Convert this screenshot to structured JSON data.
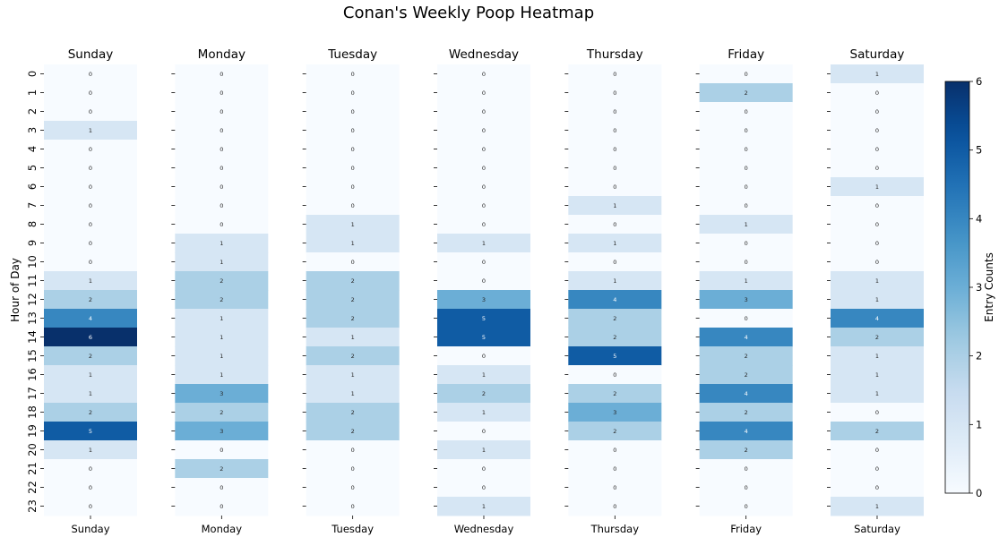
{
  "chart_data": {
    "type": "heatmap",
    "title": "Conan's Weekly Poop Heatmap",
    "ylabel": "Hour of Day",
    "colorbar_label": "Entry Counts",
    "colorbar_range": [
      0,
      6
    ],
    "colorbar_ticks": [
      "0",
      "1",
      "2",
      "3",
      "4",
      "5",
      "6"
    ],
    "colormap": "Blues",
    "hours": [
      "0",
      "1",
      "2",
      "3",
      "4",
      "5",
      "6",
      "7",
      "8",
      "9",
      "10",
      "11",
      "12",
      "13",
      "14",
      "15",
      "16",
      "17",
      "18",
      "19",
      "20",
      "21",
      "22",
      "23"
    ],
    "days": [
      {
        "name": "Sunday",
        "values": [
          0,
          0,
          0,
          1,
          0,
          0,
          0,
          0,
          0,
          0,
          0,
          1,
          2,
          4,
          6,
          2,
          1,
          1,
          2,
          5,
          1,
          0,
          0,
          0
        ]
      },
      {
        "name": "Monday",
        "values": [
          0,
          0,
          0,
          0,
          0,
          0,
          0,
          0,
          0,
          1,
          1,
          2,
          2,
          1,
          1,
          1,
          1,
          3,
          2,
          3,
          0,
          2,
          0,
          0
        ]
      },
      {
        "name": "Tuesday",
        "values": [
          0,
          0,
          0,
          0,
          0,
          0,
          0,
          0,
          1,
          1,
          0,
          2,
          2,
          2,
          1,
          2,
          1,
          1,
          2,
          2,
          0,
          0,
          0,
          0
        ]
      },
      {
        "name": "Wednesday",
        "values": [
          0,
          0,
          0,
          0,
          0,
          0,
          0,
          0,
          0,
          1,
          0,
          0,
          3,
          5,
          5,
          0,
          1,
          2,
          1,
          0,
          1,
          0,
          0,
          1
        ]
      },
      {
        "name": "Thursday",
        "values": [
          0,
          0,
          0,
          0,
          0,
          0,
          0,
          1,
          0,
          1,
          0,
          1,
          4,
          2,
          2,
          5,
          0,
          2,
          3,
          2,
          0,
          0,
          0,
          0
        ]
      },
      {
        "name": "Friday",
        "values": [
          0,
          2,
          0,
          0,
          0,
          0,
          0,
          0,
          1,
          0,
          0,
          1,
          3,
          0,
          4,
          2,
          2,
          4,
          2,
          4,
          2,
          0,
          0,
          0
        ]
      },
      {
        "name": "Saturday",
        "values": [
          1,
          0,
          0,
          0,
          0,
          0,
          1,
          0,
          0,
          0,
          0,
          1,
          1,
          4,
          2,
          1,
          1,
          1,
          0,
          2,
          0,
          0,
          0,
          1
        ]
      }
    ]
  }
}
